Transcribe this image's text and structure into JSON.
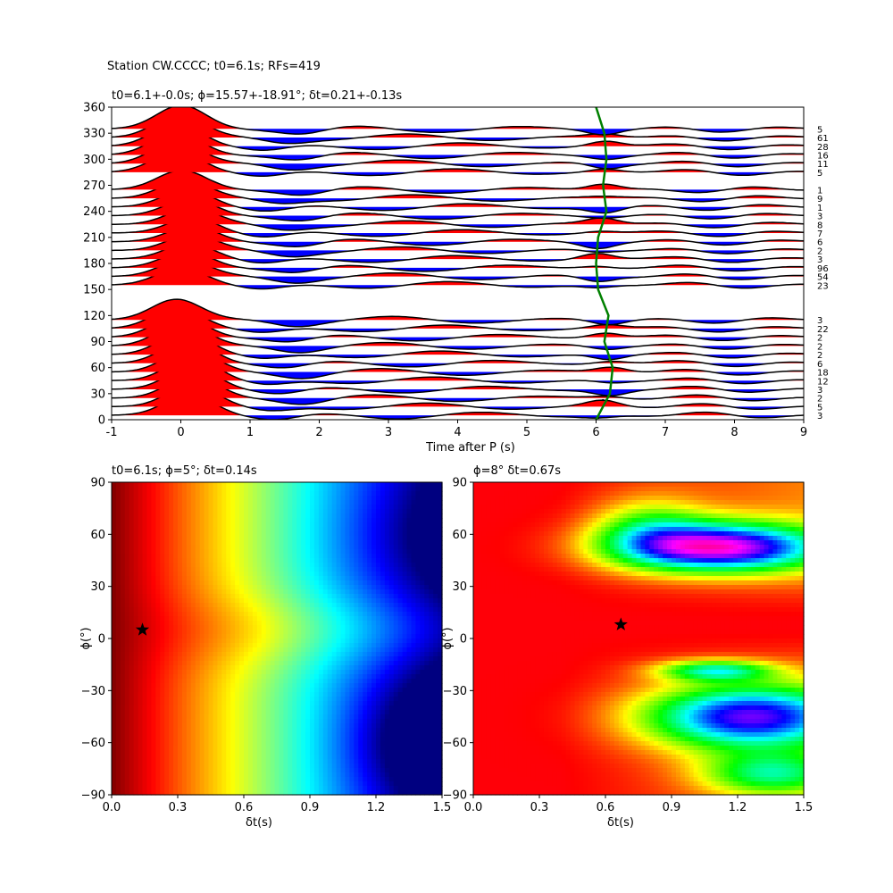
{
  "figure_title": "Station CW.CCCC; t0=6.1s; RFs=419",
  "colors": {
    "positive": "#ff0000",
    "negative": "#0000ff",
    "trace": "#000000",
    "delay_curve": "#008000"
  },
  "chart_data": [
    {
      "type": "line",
      "title": "t0=6.1+-0.0s; ϕ=15.57+-18.91°; δt=0.21+-0.13s",
      "xlabel": "Time after P (s)",
      "ylabel": "",
      "xlim": [
        -1,
        9
      ],
      "ylim": [
        0,
        360
      ],
      "xticks": [
        -1,
        0,
        1,
        2,
        3,
        4,
        5,
        6,
        7,
        8,
        9
      ],
      "yticks": [
        0,
        30,
        60,
        90,
        120,
        150,
        180,
        210,
        240,
        270,
        300,
        330,
        360
      ],
      "fill_positive": "red",
      "fill_negative": "blue",
      "baz_bins": [
        5,
        15,
        25,
        35,
        45,
        55,
        65,
        75,
        85,
        95,
        105,
        115,
        155,
        165,
        175,
        185,
        195,
        205,
        215,
        225,
        235,
        245,
        255,
        265,
        285,
        295,
        305,
        315,
        325,
        335
      ],
      "counts": [
        "3",
        "5",
        "2",
        "3",
        "12",
        "18",
        "6",
        "2",
        "2",
        "2",
        "22",
        "3",
        "23",
        "54",
        "96",
        "3",
        "2",
        "6",
        "7",
        "8",
        "3",
        "1",
        "9",
        "1",
        "5",
        "11",
        "16",
        "28",
        "61",
        "5"
      ],
      "delay_curve": {
        "name": "",
        "baz": [
          0,
          30,
          60,
          90,
          120,
          150,
          180,
          210,
          240,
          270,
          300,
          330,
          360
        ],
        "t": [
          6.0,
          6.2,
          6.24,
          6.12,
          6.18,
          6.03,
          6.0,
          6.03,
          6.15,
          6.1,
          6.15,
          6.12,
          6.0
        ]
      }
    },
    {
      "type": "heatmap",
      "title": "t0=6.1s; ϕ=5°; δt=0.14s",
      "xlabel": "δt(s)",
      "ylabel": "ϕ(°)",
      "xlim": [
        0,
        1.5
      ],
      "ylim": [
        -90,
        90
      ],
      "xticks": [
        "0.0",
        "0.3",
        "0.6",
        "0.9",
        "1.2",
        "1.5"
      ],
      "yticks": [
        "-90",
        "-60",
        "-30",
        "0",
        "30",
        "60",
        "90"
      ],
      "colormap": "jet",
      "best": {
        "dt": 0.14,
        "phi": 5
      }
    },
    {
      "type": "heatmap",
      "title": "ϕ=8° δt=0.67s",
      "xlabel": "δt(s)",
      "ylabel": "ϕ(°)",
      "xlim": [
        0,
        1.5
      ],
      "ylim": [
        -90,
        90
      ],
      "xticks": [
        "0.0",
        "0.3",
        "0.6",
        "0.9",
        "1.2",
        "1.5"
      ],
      "yticks": [
        "-90",
        "-60",
        "-30",
        "0",
        "30",
        "60",
        "90"
      ],
      "colormap": "hsv",
      "best": {
        "dt": 0.67,
        "phi": 8
      }
    }
  ]
}
